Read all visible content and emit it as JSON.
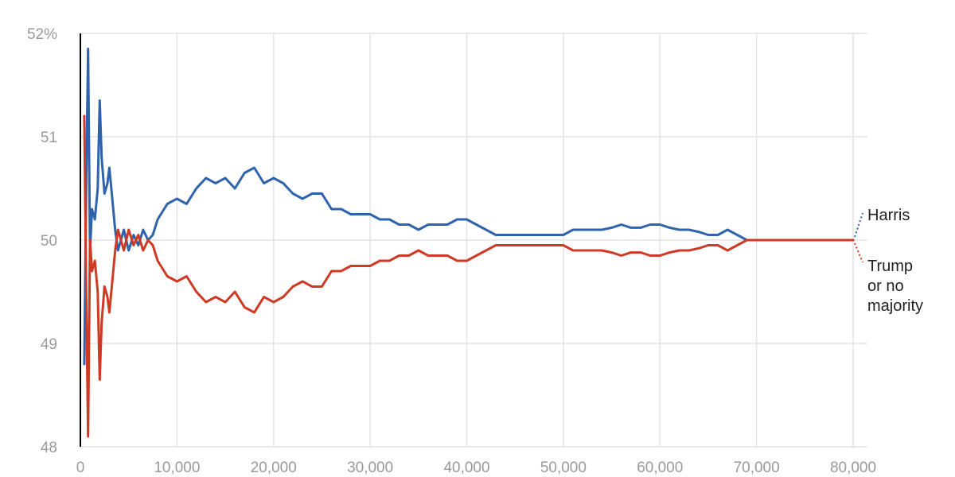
{
  "chart_data": {
    "type": "line",
    "title": "",
    "xlabel": "",
    "ylabel": "",
    "xlim": [
      0,
      80000
    ],
    "ylim": [
      48,
      52
    ],
    "grid": true,
    "x_ticks": [
      0,
      10000,
      20000,
      30000,
      40000,
      50000,
      60000,
      70000,
      80000
    ],
    "x_tick_labels": [
      "0",
      "10,000",
      "20,000",
      "30,000",
      "40,000",
      "50,000",
      "60,000",
      "70,000",
      "80,000"
    ],
    "y_ticks": [
      48,
      49,
      50,
      51,
      52
    ],
    "y_tick_labels": [
      "48",
      "49",
      "50",
      "51",
      "52%"
    ],
    "series": [
      {
        "name": "Harris",
        "color": "#2f63ad",
        "x": [
          400,
          600,
          800,
          1000,
          1200,
          1500,
          1800,
          2000,
          2200,
          2500,
          2800,
          3000,
          3300,
          3600,
          3900,
          4200,
          4500,
          5000,
          5500,
          6000,
          6500,
          7000,
          7500,
          8000,
          9000,
          10000,
          11000,
          12000,
          13000,
          14000,
          15000,
          16000,
          17000,
          18000,
          19000,
          20000,
          21000,
          22000,
          23000,
          24000,
          25000,
          26000,
          27000,
          28000,
          29000,
          30000,
          31000,
          32000,
          33000,
          34000,
          35000,
          36000,
          37000,
          38000,
          39000,
          40000,
          41000,
          42000,
          43000,
          44000,
          45000,
          46000,
          47000,
          48000,
          49000,
          50000,
          51000,
          52000,
          53000,
          54000,
          55000,
          56000,
          57000,
          58000,
          59000,
          60000,
          61000,
          62000,
          63000,
          64000,
          65000,
          66000,
          67000,
          68000,
          69000,
          70000,
          71000,
          72000,
          73000,
          74000,
          75000,
          76000,
          77000,
          78000,
          79000,
          80000
        ],
        "values": [
          48.8,
          50.5,
          51.85,
          49.9,
          50.3,
          50.2,
          50.5,
          51.35,
          50.8,
          50.45,
          50.55,
          50.7,
          50.4,
          50.1,
          49.9,
          50.0,
          50.1,
          49.9,
          50.05,
          49.95,
          50.1,
          50.0,
          50.05,
          50.2,
          50.35,
          50.4,
          50.35,
          50.5,
          50.6,
          50.55,
          50.6,
          50.5,
          50.65,
          50.7,
          50.55,
          50.6,
          50.55,
          50.45,
          50.4,
          50.45,
          50.45,
          50.3,
          50.3,
          50.25,
          50.25,
          50.25,
          50.2,
          50.2,
          50.15,
          50.15,
          50.1,
          50.15,
          50.15,
          50.15,
          50.2,
          50.2,
          50.15,
          50.1,
          50.05,
          50.05,
          50.05,
          50.05,
          50.05,
          50.05,
          50.05,
          50.05,
          50.1,
          50.1,
          50.1,
          50.1,
          50.12,
          50.15,
          50.12,
          50.12,
          50.15,
          50.15,
          50.12,
          50.1,
          50.1,
          50.08,
          50.05,
          50.05,
          50.1,
          50.05,
          50.0,
          50.0,
          50.0,
          50.0,
          50.0,
          50.0,
          50.0,
          50.0,
          50.0,
          50.0,
          50.0,
          50.0
        ]
      },
      {
        "name": "Trump or no majority",
        "color": "#cf3a24",
        "x": [
          400,
          600,
          800,
          1000,
          1200,
          1500,
          1800,
          2000,
          2200,
          2500,
          2800,
          3000,
          3300,
          3600,
          3900,
          4200,
          4500,
          5000,
          5500,
          6000,
          6500,
          7000,
          7500,
          8000,
          9000,
          10000,
          11000,
          12000,
          13000,
          14000,
          15000,
          16000,
          17000,
          18000,
          19000,
          20000,
          21000,
          22000,
          23000,
          24000,
          25000,
          26000,
          27000,
          28000,
          29000,
          30000,
          31000,
          32000,
          33000,
          34000,
          35000,
          36000,
          37000,
          38000,
          39000,
          40000,
          41000,
          42000,
          43000,
          44000,
          45000,
          46000,
          47000,
          48000,
          49000,
          50000,
          51000,
          52000,
          53000,
          54000,
          55000,
          56000,
          57000,
          58000,
          59000,
          60000,
          61000,
          62000,
          63000,
          64000,
          65000,
          66000,
          67000,
          68000,
          69000,
          70000,
          71000,
          72000,
          73000,
          74000,
          75000,
          76000,
          77000,
          78000,
          79000,
          80000
        ],
        "values": [
          51.2,
          49.5,
          48.1,
          50.0,
          49.7,
          49.8,
          49.5,
          48.65,
          49.2,
          49.55,
          49.45,
          49.3,
          49.6,
          49.9,
          50.1,
          50.0,
          49.9,
          50.1,
          49.95,
          50.05,
          49.9,
          50.0,
          49.95,
          49.8,
          49.65,
          49.6,
          49.65,
          49.5,
          49.4,
          49.45,
          49.4,
          49.5,
          49.35,
          49.3,
          49.45,
          49.4,
          49.45,
          49.55,
          49.6,
          49.55,
          49.55,
          49.7,
          49.7,
          49.75,
          49.75,
          49.75,
          49.8,
          49.8,
          49.85,
          49.85,
          49.9,
          49.85,
          49.85,
          49.85,
          49.8,
          49.8,
          49.85,
          49.9,
          49.95,
          49.95,
          49.95,
          49.95,
          49.95,
          49.95,
          49.95,
          49.95,
          49.9,
          49.9,
          49.9,
          49.9,
          49.88,
          49.85,
          49.88,
          49.88,
          49.85,
          49.85,
          49.88,
          49.9,
          49.9,
          49.92,
          49.95,
          49.95,
          49.9,
          49.95,
          50.0,
          50.0,
          50.0,
          50.0,
          50.0,
          50.0,
          50.0,
          50.0,
          50.0,
          50.0,
          50.0,
          50.0
        ]
      }
    ],
    "series_labels": [
      {
        "lines": [
          "Harris"
        ],
        "color": "#2f63ad"
      },
      {
        "lines": [
          "Trump",
          "or no",
          "majority"
        ],
        "color": "#cf3a24"
      }
    ]
  }
}
